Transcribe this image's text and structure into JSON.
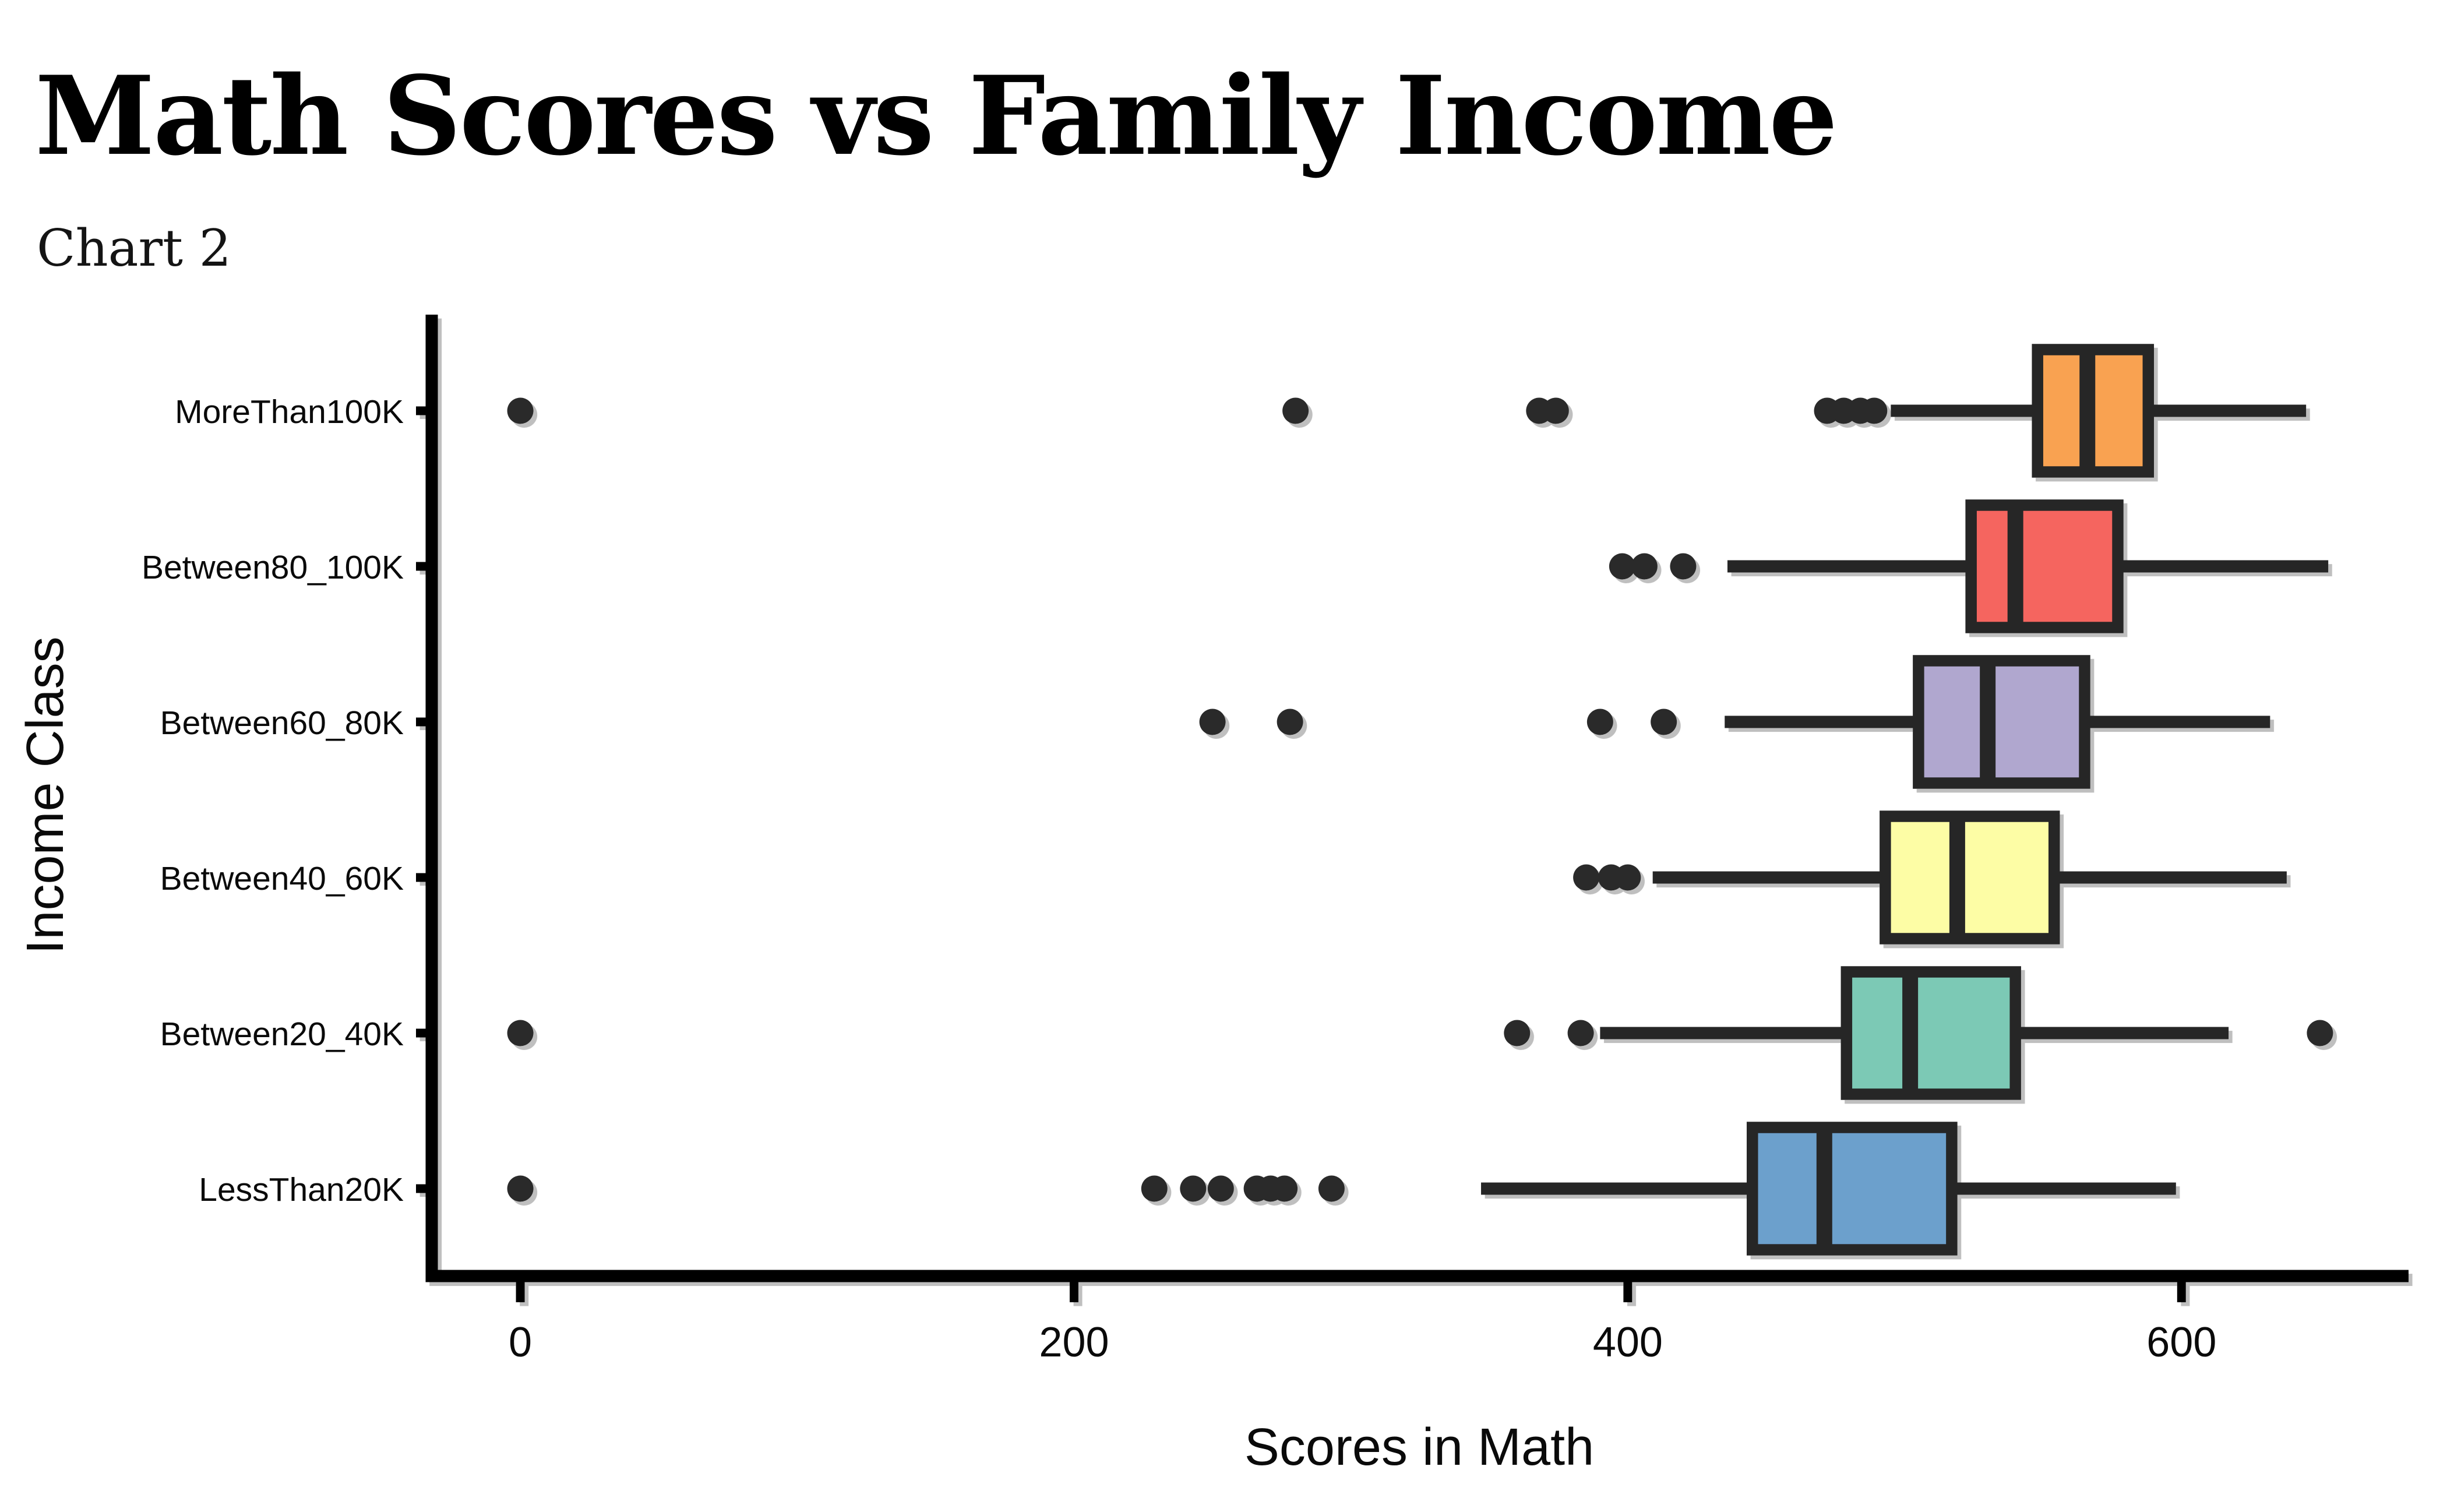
{
  "header": {
    "title": "Math Scores vs Family Income",
    "subtitle": "Chart 2"
  },
  "chart_data": {
    "type": "boxplot",
    "orientation": "horizontal",
    "title": "Math Scores vs Family Income",
    "subtitle": "Chart 2",
    "xlabel": "Scores in Math",
    "ylabel": "Income Class",
    "x_ticks": [
      0,
      200,
      400,
      600
    ],
    "xlim": [
      -32,
      682
    ],
    "grid": false,
    "legend": "none",
    "background_color": "#FFFFFF",
    "box_edge_color": "#262626",
    "outlier_color": "#2B2B2B",
    "categories": [
      "MoreThan100K",
      "Between80_100K",
      "Between60_80K",
      "Between40_60K",
      "Between20_40K",
      "LessThan20K"
    ],
    "series": [
      {
        "category": "MoreThan100K",
        "color": "#F9A251",
        "whisker_low": 495,
        "q1": 548,
        "median": 566,
        "q3": 588,
        "whisker_high": 645,
        "outliers": [
          0,
          280,
          368,
          374,
          472,
          478,
          484,
          489
        ]
      },
      {
        "category": "Between80_100K",
        "color": "#F5655E",
        "whisker_low": 436,
        "q1": 524,
        "median": 540,
        "q3": 577,
        "whisker_high": 653,
        "outliers": [
          398,
          406,
          420
        ]
      },
      {
        "category": "Between60_80K",
        "color": "#B0A7CF",
        "whisker_low": 435,
        "q1": 505,
        "median": 530,
        "q3": 565,
        "whisker_high": 632,
        "outliers": [
          250,
          278,
          390,
          413
        ]
      },
      {
        "category": "Between40_60K",
        "color": "#FDFDA5",
        "whisker_low": 409,
        "q1": 493,
        "median": 519,
        "q3": 554,
        "whisker_high": 638,
        "outliers": [
          385,
          394,
          400
        ]
      },
      {
        "category": "Between20_40K",
        "color": "#7BC9B5",
        "whisker_low": 390,
        "q1": 479,
        "median": 502,
        "q3": 540,
        "whisker_high": 617,
        "outliers": [
          0,
          360,
          383,
          650
        ]
      },
      {
        "category": "LessThan20K",
        "color": "#6CA0CC",
        "whisker_low": 347,
        "q1": 445,
        "median": 471,
        "q3": 517,
        "whisker_high": 598,
        "outliers": [
          0,
          229,
          243,
          253,
          266,
          271,
          276,
          293
        ]
      }
    ]
  }
}
